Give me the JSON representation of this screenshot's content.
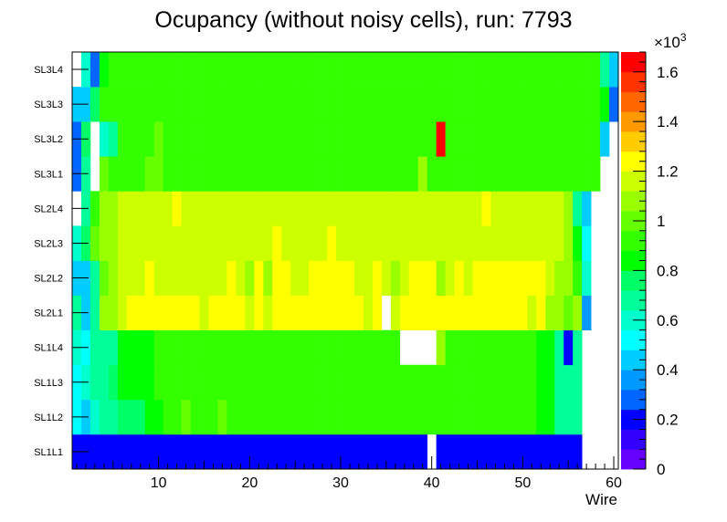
{
  "chart_data": {
    "type": "heatmap",
    "title": "Ocupancy (without noisy cells), run: 7793",
    "xlabel": "Wire",
    "ylabel": "",
    "xlim": [
      0.5,
      60.5
    ],
    "x_ticks": [
      "10",
      "20",
      "30",
      "40",
      "50",
      "60"
    ],
    "y_categories": [
      "SL1L1",
      "SL1L2",
      "SL1L3",
      "SL1L4",
      "SL2L1",
      "SL2L2",
      "SL2L3",
      "SL2L4",
      "SL3L1",
      "SL3L2",
      "SL3L3",
      "SL3L4"
    ],
    "colorbar": {
      "exponent_label": "×10",
      "exponent": "3",
      "ticks": [
        "0",
        "0.2",
        "0.4",
        "0.6",
        "0.8",
        "1",
        "1.2",
        "1.4",
        "1.6"
      ],
      "zlim": [
        0,
        1680
      ]
    },
    "colors": {
      "palette": [
        "#6600ff",
        "#3300ff",
        "#0000ff",
        "#0066ff",
        "#0099ff",
        "#00ccff",
        "#00ffff",
        "#00ffcc",
        "#00ff99",
        "#00ff66",
        "#00ff00",
        "#33ff00",
        "#66ff00",
        "#99ff00",
        "#ccff00",
        "#ffff00",
        "#ffcc00",
        "#ff9900",
        "#ff6600",
        "#ff3300",
        "#ff0000"
      ]
    },
    "layers": [
      {
        "name": "SL1L1",
        "values": [
          200,
          200,
          200,
          200,
          200,
          200,
          200,
          200,
          200,
          200,
          200,
          200,
          200,
          200,
          200,
          200,
          200,
          200,
          200,
          200,
          200,
          200,
          200,
          200,
          200,
          200,
          200,
          200,
          200,
          200,
          200,
          200,
          200,
          200,
          200,
          200,
          200,
          200,
          200,
          0,
          200,
          200,
          200,
          200,
          200,
          200,
          200,
          200,
          200,
          200,
          200,
          200,
          200,
          200,
          200,
          200,
          0,
          0,
          0,
          0
        ]
      },
      {
        "name": "SL1L2",
        "values": [
          500,
          450,
          620,
          650,
          680,
          760,
          760,
          760,
          850,
          850,
          900,
          900,
          1000,
          900,
          950,
          950,
          1000,
          900,
          900,
          900,
          920,
          900,
          900,
          900,
          950,
          900,
          950,
          900,
          900,
          920,
          950,
          900,
          950,
          900,
          900,
          920,
          900,
          900,
          900,
          950,
          900,
          900,
          920,
          950,
          900,
          900,
          950,
          900,
          950,
          900,
          900,
          800,
          800,
          680,
          680,
          650,
          0,
          0,
          0,
          0
        ]
      },
      {
        "name": "SL1L3",
        "values": [
          500,
          600,
          700,
          700,
          720,
          800,
          820,
          850,
          850,
          880,
          900,
          900,
          950,
          880,
          950,
          950,
          950,
          880,
          880,
          900,
          900,
          880,
          900,
          900,
          950,
          900,
          950,
          900,
          900,
          920,
          950,
          900,
          950,
          900,
          900,
          920,
          900,
          900,
          900,
          950,
          900,
          900,
          920,
          950,
          900,
          900,
          950,
          900,
          920,
          900,
          900,
          800,
          800,
          700,
          700,
          650,
          0,
          0,
          0,
          0
        ]
      },
      {
        "name": "SL1L4",
        "values": [
          600,
          480,
          650,
          700,
          700,
          800,
          800,
          820,
          850,
          880,
          900,
          900,
          950,
          880,
          950,
          950,
          950,
          880,
          880,
          900,
          900,
          880,
          900,
          900,
          950,
          900,
          950,
          900,
          900,
          920,
          950,
          900,
          950,
          900,
          900,
          920,
          0,
          0,
          0,
          0,
          1050,
          920,
          900,
          950,
          900,
          900,
          950,
          900,
          920,
          900,
          900,
          800,
          800,
          700,
          220,
          650,
          0,
          0,
          0,
          0
        ]
      },
      {
        "name": "SL2L1",
        "values": [
          650,
          400,
          700,
          1050,
          1100,
          1150,
          1200,
          1200,
          1200,
          1200,
          1200,
          1200,
          1200,
          1200,
          1150,
          1200,
          1200,
          1200,
          1200,
          1150,
          1200,
          1150,
          1200,
          1200,
          1200,
          1200,
          1200,
          1250,
          1200,
          1200,
          1200,
          1200,
          1150,
          1200,
          0,
          1150,
          1200,
          1200,
          1250,
          1200,
          1200,
          1200,
          1200,
          1200,
          1200,
          1200,
          1200,
          1200,
          1200,
          1200,
          1150,
          1200,
          1100,
          1100,
          1000,
          1050,
          350,
          0,
          0,
          0
        ]
      },
      {
        "name": "SL2L2",
        "values": [
          450,
          400,
          700,
          1000,
          1050,
          1150,
          1150,
          1150,
          1200,
          1150,
          1150,
          1150,
          1150,
          1150,
          1150,
          1150,
          1150,
          1200,
          1150,
          1100,
          1200,
          1100,
          1200,
          1200,
          1150,
          1150,
          1200,
          1200,
          1200,
          1200,
          1200,
          1150,
          1150,
          1200,
          1150,
          1100,
          1150,
          1200,
          1250,
          1200,
          1100,
          1150,
          1200,
          1150,
          1200,
          1200,
          1250,
          1250,
          1250,
          1250,
          1200,
          1200,
          1150,
          1100,
          1050,
          950,
          600,
          0,
          0,
          0
        ]
      },
      {
        "name": "SL2L3",
        "values": [
          600,
          750,
          1000,
          1050,
          1100,
          1150,
          1150,
          1150,
          1150,
          1150,
          1150,
          1150,
          1150,
          1150,
          1150,
          1150,
          1150,
          1150,
          1150,
          1150,
          1150,
          1150,
          1200,
          1150,
          1150,
          1150,
          1150,
          1150,
          1250,
          1150,
          1150,
          1150,
          1150,
          1150,
          1150,
          1150,
          1150,
          1150,
          1150,
          1150,
          1150,
          1150,
          1150,
          1150,
          1150,
          1150,
          1150,
          1150,
          1150,
          1150,
          1150,
          1150,
          1150,
          1150,
          1050,
          800,
          500,
          0,
          0,
          0
        ]
      },
      {
        "name": "SL2L4",
        "values": [
          0,
          650,
          900,
          1050,
          1100,
          1150,
          1150,
          1150,
          1150,
          1150,
          1150,
          1250,
          1150,
          1150,
          1150,
          1150,
          1150,
          1150,
          1150,
          1150,
          1150,
          1150,
          1150,
          1150,
          1150,
          1150,
          1150,
          1150,
          1150,
          1150,
          1150,
          1150,
          1150,
          1150,
          1150,
          1150,
          1150,
          1150,
          1150,
          1150,
          1150,
          1150,
          1150,
          1150,
          1150,
          1250,
          1150,
          1150,
          1150,
          1150,
          1150,
          1150,
          1150,
          1150,
          1050,
          650,
          400,
          0,
          0,
          0
        ]
      },
      {
        "name": "SL3L1",
        "values": [
          250,
          650,
          0,
          1000,
          950,
          950,
          950,
          950,
          1000,
          1000,
          950,
          950,
          950,
          950,
          950,
          950,
          950,
          950,
          950,
          950,
          950,
          950,
          950,
          950,
          950,
          950,
          950,
          950,
          950,
          950,
          950,
          950,
          950,
          950,
          950,
          950,
          950,
          950,
          1100,
          950,
          950,
          950,
          950,
          950,
          950,
          950,
          950,
          950,
          950,
          950,
          950,
          950,
          950,
          950,
          950,
          950,
          950,
          950,
          0,
          0
        ]
      },
      {
        "name": "SL3L2",
        "values": [
          250,
          750,
          0,
          600,
          700,
          900,
          950,
          950,
          950,
          1000,
          950,
          950,
          950,
          950,
          950,
          950,
          950,
          950,
          950,
          950,
          950,
          950,
          950,
          950,
          950,
          950,
          950,
          950,
          950,
          950,
          950,
          950,
          950,
          950,
          950,
          950,
          950,
          950,
          950,
          950,
          1650,
          950,
          950,
          950,
          950,
          950,
          950,
          950,
          950,
          950,
          950,
          950,
          950,
          950,
          950,
          950,
          950,
          950,
          400,
          0
        ]
      },
      {
        "name": "SL3L3",
        "values": [
          450,
          450,
          750,
          950,
          950,
          950,
          950,
          950,
          950,
          950,
          950,
          950,
          950,
          950,
          950,
          950,
          950,
          950,
          950,
          950,
          950,
          950,
          950,
          950,
          950,
          950,
          950,
          950,
          950,
          950,
          950,
          950,
          950,
          950,
          950,
          950,
          950,
          950,
          950,
          950,
          950,
          950,
          950,
          950,
          950,
          950,
          950,
          950,
          950,
          950,
          950,
          950,
          950,
          950,
          950,
          950,
          950,
          950,
          800,
          250
        ]
      },
      {
        "name": "SL3L4",
        "values": [
          0,
          600,
          250,
          800,
          950,
          950,
          950,
          950,
          950,
          950,
          950,
          950,
          950,
          950,
          950,
          950,
          950,
          950,
          950,
          950,
          950,
          950,
          950,
          950,
          950,
          950,
          950,
          950,
          950,
          950,
          950,
          950,
          950,
          950,
          950,
          950,
          950,
          950,
          950,
          950,
          950,
          950,
          950,
          950,
          950,
          950,
          950,
          950,
          950,
          950,
          950,
          950,
          950,
          950,
          950,
          950,
          950,
          950,
          700,
          450
        ]
      }
    ]
  }
}
